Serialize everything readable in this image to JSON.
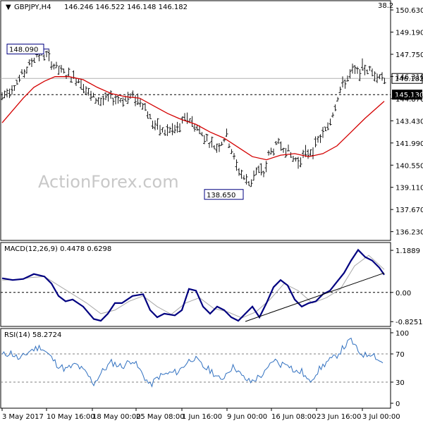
{
  "header": {
    "symbol": "GBPJPY,H4",
    "ohlc": "146.246 146.522 146.148 146.182",
    "corner_value": "38.2"
  },
  "watermark": "ActionForex.com",
  "colors": {
    "background": "#ffffff",
    "bars": "#1a1a1a",
    "ma": "#d40000",
    "macd": "#000080",
    "signal": "#a8a8a8",
    "rsi": "#3070c0",
    "label_border": "#000080"
  },
  "chart_data": [
    {
      "type": "line",
      "title": "GBPJPY,H4",
      "ylim": [
        135.8,
        151.0
      ],
      "y_ticks": [
        "150.630",
        "149.190",
        "147.750",
        "146.310",
        "144.870",
        "143.430",
        "141.990",
        "140.550",
        "139.110",
        "137.670",
        "136.230"
      ],
      "x_ticks": [
        "3 May 2017",
        "10 May 16:00",
        "18 May 00:00",
        "25 May 08:00",
        "1 Jun 16:00",
        "9 Jun 00:00",
        "16 Jun 08:00",
        "23 Jun 16:00",
        "3 Jul 00:00"
      ],
      "price_series": {
        "x": [
          0,
          10,
          22,
          35,
          50,
          65,
          75,
          88,
          100,
          112,
          125,
          140,
          155,
          170,
          185,
          200,
          213,
          228,
          238,
          250,
          262,
          272,
          285,
          298,
          305,
          312,
          318,
          325,
          332,
          338,
          345,
          352,
          358,
          365,
          372,
          378,
          385,
          392,
          398,
          405,
          412,
          420,
          428,
          435,
          442,
          450,
          458,
          465,
          472,
          478,
          485,
          492,
          498,
          505,
          512,
          520,
          527,
          535,
          543
        ],
        "y": [
          145.0,
          145.4,
          146.0,
          146.8,
          147.8,
          147.6,
          146.9,
          146.5,
          146.3,
          146.0,
          145.0,
          144.7,
          144.9,
          144.8,
          145.0,
          144.6,
          143.3,
          142.7,
          142.8,
          142.9,
          143.7,
          143.2,
          142.5,
          141.9,
          141.7,
          142.1,
          142.5,
          141.6,
          140.5,
          140.1,
          139.6,
          139.3,
          140.1,
          140.2,
          140.0,
          141.2,
          141.6,
          141.9,
          141.8,
          141.5,
          141.0,
          140.8,
          141.2,
          141.4,
          141.6,
          142.3,
          142.7,
          143.4,
          144.4,
          145.3,
          145.9,
          146.3,
          146.7,
          146.5,
          146.9,
          146.7,
          146.5,
          146.4,
          146.2
        ]
      },
      "ma_series": {
        "x": [
          0,
          15,
          30,
          45,
          60,
          75,
          95,
          115,
          135,
          155,
          175,
          195,
          215,
          235,
          255,
          275,
          295,
          315,
          335,
          355,
          375,
          395,
          415,
          435,
          455,
          475,
          495,
          515,
          542
        ],
        "y": [
          143.3,
          144.1,
          144.9,
          145.6,
          146.0,
          146.3,
          146.3,
          146.1,
          145.6,
          145.2,
          145.0,
          144.9,
          144.4,
          143.9,
          143.5,
          143.2,
          142.7,
          142.3,
          141.7,
          141.1,
          140.9,
          141.2,
          141.3,
          141.1,
          141.3,
          141.8,
          142.7,
          143.6,
          144.7
        ]
      },
      "annotations": [
        {
          "text": "148.090",
          "value": 148.09
        },
        {
          "text": "138.650",
          "value": 138.65
        },
        {
          "text": "146.182",
          "value": 146.182
        },
        {
          "text": "145.130",
          "value": 145.13
        }
      ],
      "horizontal_lines": [
        {
          "value": 145.13,
          "style": "dashed"
        },
        {
          "value": 146.182,
          "style": "solid-gray"
        }
      ]
    },
    {
      "type": "line",
      "title": "MACD(12,26,9) 0.4478 0.6298",
      "ylim": [
        -0.9,
        1.35
      ],
      "y_ticks": [
        "1.1889",
        "0.00",
        "-0.8251"
      ],
      "macd": {
        "x": [
          0,
          15,
          30,
          45,
          60,
          70,
          80,
          90,
          100,
          115,
          130,
          140,
          150,
          160,
          170,
          185,
          200,
          210,
          220,
          230,
          245,
          255,
          265,
          275,
          285,
          295,
          305,
          315,
          325,
          335,
          345,
          355,
          365,
          375,
          385,
          395,
          405,
          415,
          425,
          435,
          445,
          455,
          465,
          475,
          485,
          495,
          505,
          515,
          525,
          535,
          542
        ],
        "y": [
          0.4,
          0.35,
          0.38,
          0.52,
          0.45,
          0.25,
          -0.1,
          -0.25,
          -0.2,
          -0.4,
          -0.75,
          -0.8,
          -0.6,
          -0.3,
          -0.3,
          -0.1,
          -0.05,
          -0.5,
          -0.7,
          -0.6,
          -0.65,
          -0.5,
          0.1,
          0.05,
          -0.4,
          -0.6,
          -0.4,
          -0.5,
          -0.7,
          -0.8,
          -0.6,
          -0.4,
          -0.7,
          -0.3,
          0.15,
          0.35,
          0.2,
          -0.2,
          -0.4,
          -0.3,
          -0.25,
          -0.05,
          0.05,
          0.3,
          0.55,
          0.9,
          1.2,
          1.0,
          0.9,
          0.7,
          0.5
        ]
      },
      "signal": {
        "x": [
          0,
          20,
          40,
          60,
          80,
          100,
          120,
          140,
          160,
          180,
          200,
          220,
          240,
          260,
          280,
          300,
          320,
          340,
          360,
          380,
          400,
          420,
          440,
          460,
          480,
          500,
          520,
          542
        ],
        "y": [
          0.35,
          0.36,
          0.42,
          0.45,
          0.2,
          -0.05,
          -0.3,
          -0.6,
          -0.5,
          -0.25,
          -0.1,
          -0.4,
          -0.62,
          -0.3,
          -0.15,
          -0.45,
          -0.55,
          -0.72,
          -0.55,
          -0.2,
          0.25,
          0.05,
          -0.3,
          -0.15,
          0.1,
          0.75,
          1.05,
          0.65
        ]
      },
      "trendline": {
        "x": [
          345,
          542
        ],
        "y": [
          -0.82,
          0.55
        ]
      },
      "zero_line": 0
    },
    {
      "type": "line",
      "title": "RSI(14) 58.2724",
      "ylim": [
        0,
        100
      ],
      "y_ticks": [
        "100",
        "70",
        "30",
        "0"
      ],
      "levels": [
        70,
        30
      ],
      "rsi": {
        "x": [
          0,
          12,
          25,
          40,
          55,
          65,
          78,
          90,
          105,
          120,
          130,
          142,
          155,
          170,
          185,
          200,
          210,
          222,
          235,
          250,
          262,
          272,
          285,
          298,
          310,
          322,
          330,
          340,
          352,
          362,
          374,
          385,
          395,
          405,
          415,
          425,
          435,
          448,
          460,
          472,
          485,
          495,
          505,
          515,
          525,
          535,
          542
        ],
        "y": [
          68,
          72,
          62,
          75,
          80,
          70,
          55,
          48,
          55,
          42,
          28,
          45,
          58,
          52,
          62,
          40,
          25,
          38,
          42,
          45,
          58,
          65,
          52,
          45,
          32,
          48,
          52,
          38,
          30,
          36,
          44,
          62,
          55,
          58,
          44,
          45,
          30,
          46,
          58,
          65,
          80,
          90,
          73,
          68,
          72,
          60,
          57
        ]
      }
    }
  ]
}
